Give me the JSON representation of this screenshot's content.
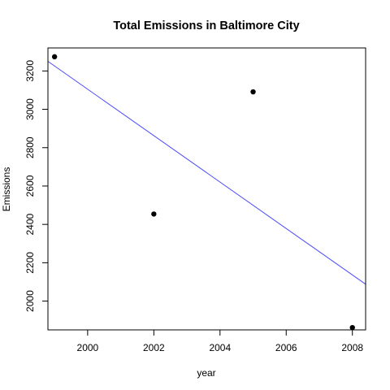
{
  "chart_data": {
    "type": "scatter",
    "title": "Total Emissions in Baltimore City",
    "xlabel": "year",
    "ylabel": "Emissions",
    "xlim": [
      1998.8,
      2008.4
    ],
    "ylim": [
      1850,
      3320
    ],
    "x_ticks": [
      2000,
      2002,
      2004,
      2006,
      2008
    ],
    "y_ticks": [
      2000,
      2200,
      2400,
      2600,
      2800,
      3000,
      3200
    ],
    "grid": false,
    "points": [
      {
        "x": 1999,
        "y": 3274
      },
      {
        "x": 2002,
        "y": 2454
      },
      {
        "x": 2005,
        "y": 3091
      },
      {
        "x": 2008,
        "y": 1862
      }
    ],
    "trend_line": {
      "start": {
        "x": 1998.8,
        "y": 3250
      },
      "end": {
        "x": 2008.4,
        "y": 2088
      }
    },
    "colors": {
      "points": "#000000",
      "trend_line": "#4a4aff",
      "axis": "#000000"
    }
  }
}
